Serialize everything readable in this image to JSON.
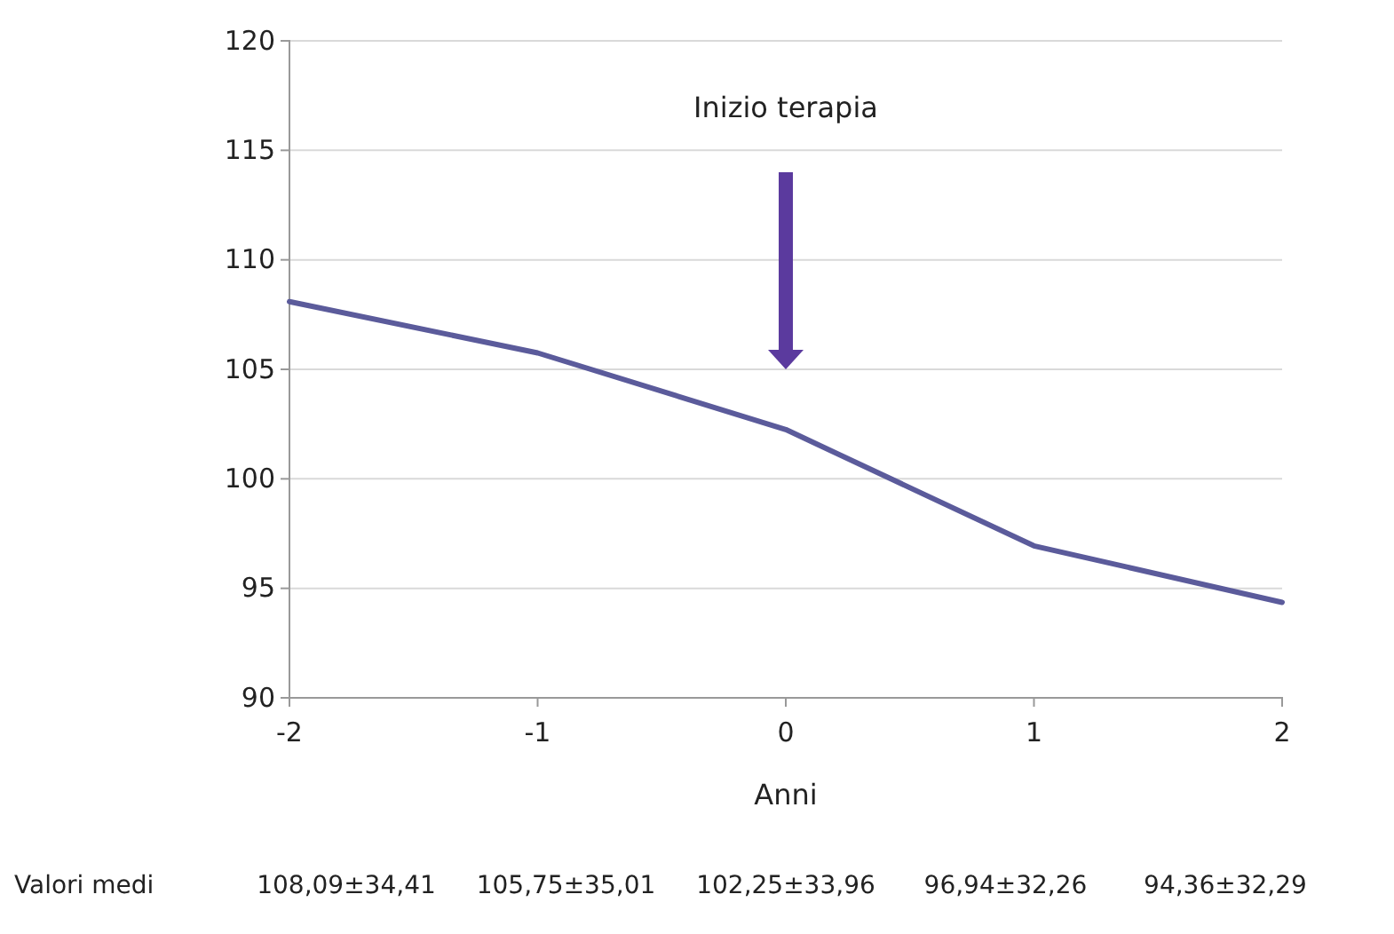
{
  "chart_data": {
    "type": "line",
    "xlabel": "Anni",
    "x": [
      -2,
      -1,
      0,
      1,
      2
    ],
    "series": [
      {
        "color": "#5b5b9b",
        "values": [
          108.09,
          105.75,
          102.25,
          96.94,
          94.36
        ]
      }
    ],
    "xlim": [
      -2,
      2
    ],
    "xticks": [
      -2,
      -1,
      0,
      1,
      2
    ],
    "ylim": [
      90,
      120
    ],
    "yticks": [
      90,
      95,
      100,
      105,
      110,
      115,
      120
    ],
    "grid": "y",
    "marker": "none",
    "line_style": "solid",
    "annotations": [
      "Inizio terapia",
      "Valori medi",
      "108,09±34,41",
      "105,75±35,01",
      "102,25±33,96",
      "96,94±32,26",
      "94,36±32,29"
    ]
  }
}
